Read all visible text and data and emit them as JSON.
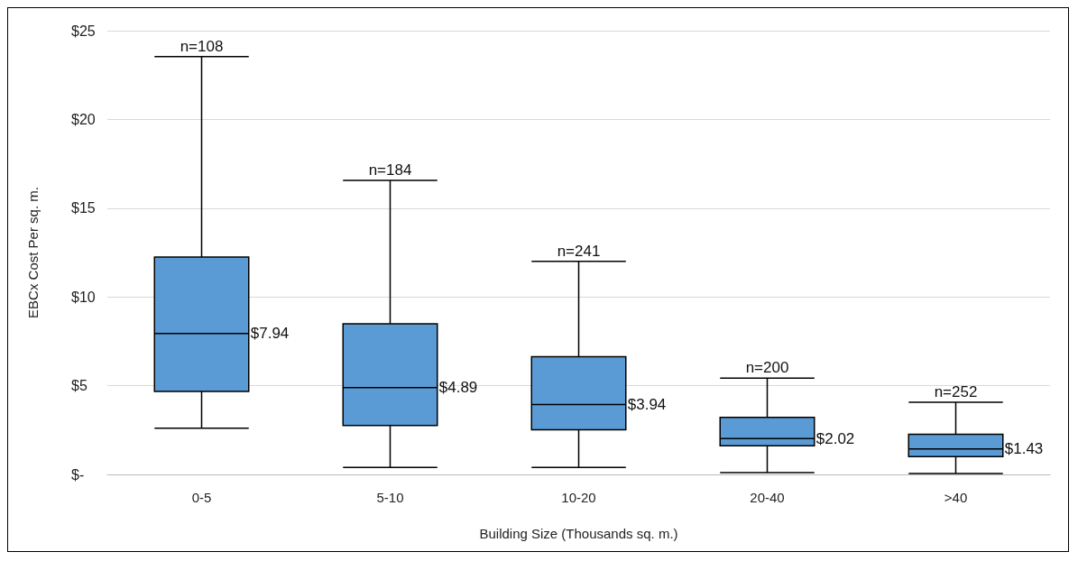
{
  "chart_data": {
    "type": "box",
    "xlabel": "Building Size (Thousands sq. m.)",
    "ylabel": "EBCx Cost Per sq. m.",
    "categories": [
      "0-5",
      "5-10",
      "10-20",
      "20-40",
      ">40"
    ],
    "boxes": [
      {
        "low": 2.6,
        "q1": 4.67,
        "median": 7.94,
        "q3": 12.25,
        "high": 23.54
      },
      {
        "low": 0.4,
        "q1": 2.76,
        "median": 4.89,
        "q3": 8.48,
        "high": 16.57
      },
      {
        "low": 0.4,
        "q1": 2.51,
        "median": 3.94,
        "q3": 6.63,
        "high": 12.0
      },
      {
        "low": 0.1,
        "q1": 1.61,
        "median": 2.02,
        "q3": 3.21,
        "high": 5.42
      },
      {
        "low": 0.05,
        "q1": 1.0,
        "median": 1.43,
        "q3": 2.26,
        "high": 4.07
      }
    ],
    "color": "#5b9bd5",
    "ylim": [
      0,
      25
    ],
    "yticks": [
      {
        "value": 0,
        "label": "$-"
      },
      {
        "value": 5,
        "label": "$5"
      },
      {
        "value": 10,
        "label": "$10"
      },
      {
        "value": 15,
        "label": "$15"
      },
      {
        "value": 20,
        "label": "$20"
      },
      {
        "value": 25,
        "label": "$25"
      }
    ],
    "grid": "y",
    "value_labels": [
      "$7.94",
      "$4.89",
      "$3.94",
      "$2.02",
      "$1.43"
    ],
    "annotations": [
      {
        "text": "n=108",
        "x": "0-5",
        "y": 23.54
      },
      {
        "text": "n=184",
        "x": "5-10",
        "y": 16.57
      },
      {
        "text": "n=241",
        "x": "10-20",
        "y": 12.0
      },
      {
        "text": "n=200",
        "x": "20-40",
        "y": 5.42
      },
      {
        "text": "n=252",
        "x": ">40",
        "y": 4.07
      }
    ]
  }
}
